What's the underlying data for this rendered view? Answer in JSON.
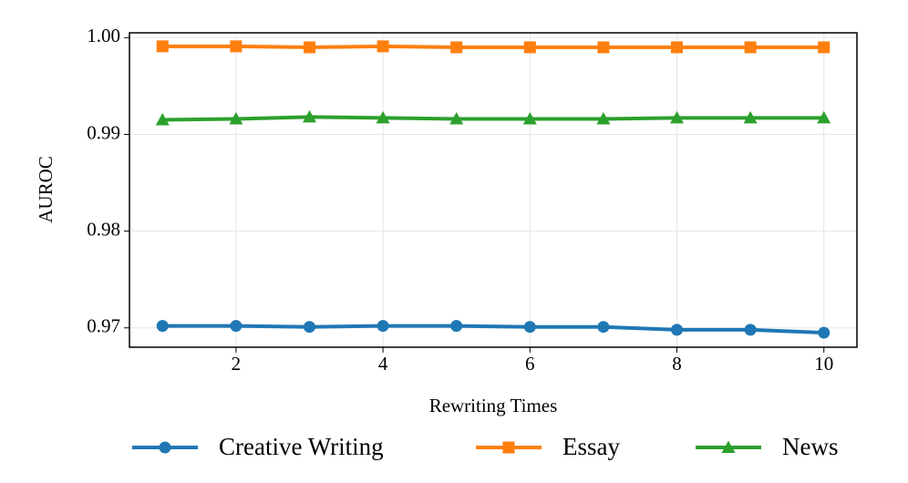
{
  "chart_data": {
    "type": "line",
    "x_label": "Rewriting Times",
    "y_label": "AUROC",
    "x": [
      1,
      2,
      3,
      4,
      5,
      6,
      7,
      8,
      9,
      10
    ],
    "series": [
      {
        "name": "Creative Writing",
        "color": "#1f77b4",
        "marker": "circle",
        "values": [
          0.9702,
          0.9702,
          0.9701,
          0.9702,
          0.9702,
          0.9701,
          0.9701,
          0.9698,
          0.9698,
          0.9695
        ]
      },
      {
        "name": "Essay",
        "color": "#ff7f0e",
        "marker": "square",
        "values": [
          0.9991,
          0.9991,
          0.999,
          0.9991,
          0.999,
          0.999,
          0.999,
          0.999,
          0.999,
          0.999
        ]
      },
      {
        "name": "News",
        "color": "#2ca02c",
        "marker": "triangle",
        "values": [
          0.9915,
          0.9916,
          0.9918,
          0.9917,
          0.9916,
          0.9916,
          0.9916,
          0.9917,
          0.9917,
          0.9917
        ]
      }
    ],
    "xlim": [
      0.55,
      10.45
    ],
    "ylim": [
      0.968,
      1.0005
    ],
    "xticks": [
      2,
      4,
      6,
      8,
      10
    ],
    "yticks": [
      {
        "value": 1.0,
        "label": "1.00"
      },
      0.99,
      0.98,
      0.97
    ],
    "grid": true,
    "legend": "bottom"
  }
}
